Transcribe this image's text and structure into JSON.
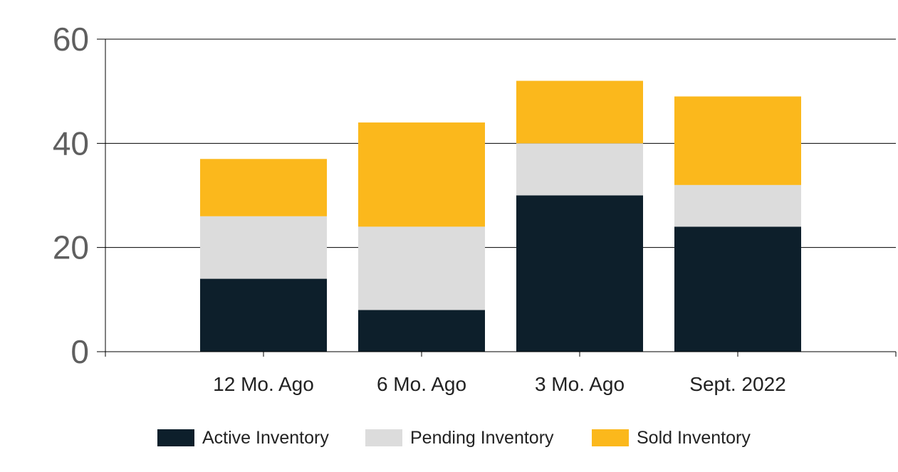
{
  "chart_data": {
    "type": "bar",
    "stacked": true,
    "categories": [
      "12 Mo. Ago",
      "6 Mo. Ago",
      "3 Mo. Ago",
      "Sept. 2022"
    ],
    "series": [
      {
        "name": "Active Inventory",
        "values": [
          14,
          8,
          30,
          24
        ],
        "color": "#0d1f2b"
      },
      {
        "name": "Pending Inventory",
        "values": [
          12,
          16,
          10,
          8
        ],
        "color": "#dcdcdc"
      },
      {
        "name": "Sold Inventory",
        "values": [
          11,
          20,
          12,
          17
        ],
        "color": "#fbb81c"
      }
    ],
    "title": "",
    "xlabel": "",
    "ylabel": "",
    "ylim": [
      0,
      60
    ],
    "yticks": [
      0,
      20,
      40,
      60
    ],
    "grid": true,
    "legend_position": "bottom"
  }
}
